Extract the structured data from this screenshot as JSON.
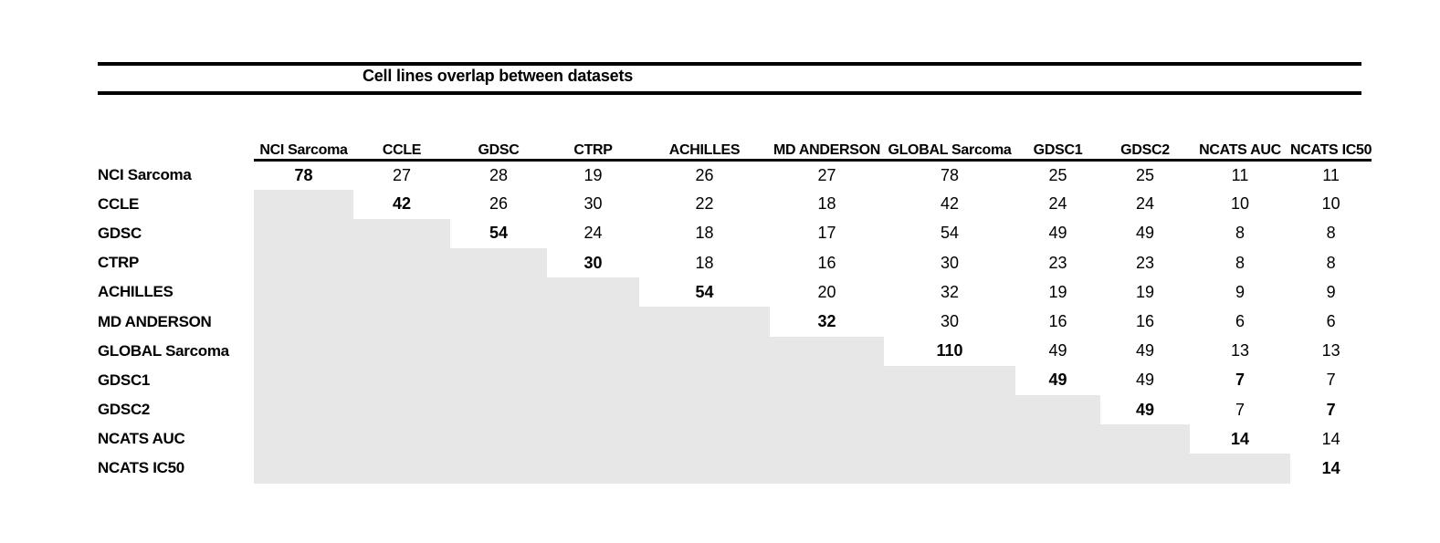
{
  "chart_data": {
    "type": "table",
    "title": "Cell lines overlap between datasets",
    "datasets": [
      "NCI Sarcoma",
      "CCLE",
      "GDSC",
      "CTRP",
      "ACHILLES",
      "MD ANDERSON",
      "GLOBAL Sarcoma",
      "GDSC1",
      "GDSC2",
      "NCATS AUC",
      "NCATS IC50"
    ],
    "matrix": [
      [
        78,
        27,
        28,
        19,
        26,
        27,
        78,
        25,
        25,
        11,
        11
      ],
      [
        null,
        42,
        26,
        30,
        22,
        18,
        42,
        24,
        24,
        10,
        10
      ],
      [
        null,
        null,
        54,
        24,
        18,
        17,
        54,
        49,
        49,
        8,
        8
      ],
      [
        null,
        null,
        null,
        30,
        18,
        16,
        30,
        23,
        23,
        8,
        8
      ],
      [
        null,
        null,
        null,
        null,
        54,
        20,
        32,
        19,
        19,
        9,
        9
      ],
      [
        null,
        null,
        null,
        null,
        null,
        32,
        30,
        16,
        16,
        6,
        6
      ],
      [
        null,
        null,
        null,
        null,
        null,
        null,
        110,
        49,
        49,
        13,
        13
      ],
      [
        null,
        null,
        null,
        null,
        null,
        null,
        null,
        49,
        49,
        7,
        7
      ],
      [
        null,
        null,
        null,
        null,
        null,
        null,
        null,
        null,
        49,
        7,
        7
      ],
      [
        null,
        null,
        null,
        null,
        null,
        null,
        null,
        null,
        null,
        14,
        14
      ],
      [
        null,
        null,
        null,
        null,
        null,
        null,
        null,
        null,
        null,
        null,
        14
      ]
    ],
    "bold_cells": [
      [
        0,
        0
      ],
      [
        1,
        1
      ],
      [
        2,
        2
      ],
      [
        3,
        3
      ],
      [
        4,
        4
      ],
      [
        5,
        5
      ],
      [
        6,
        6
      ],
      [
        7,
        7
      ],
      [
        7,
        9
      ],
      [
        8,
        8
      ],
      [
        8,
        10
      ],
      [
        9,
        9
      ],
      [
        10,
        10
      ]
    ],
    "colors": {
      "shaded_cell": "#e7e7e7",
      "text": "#000000",
      "rule": "#000000"
    },
    "layout": {
      "shading": "lower-triangle",
      "header_underline": true
    }
  }
}
